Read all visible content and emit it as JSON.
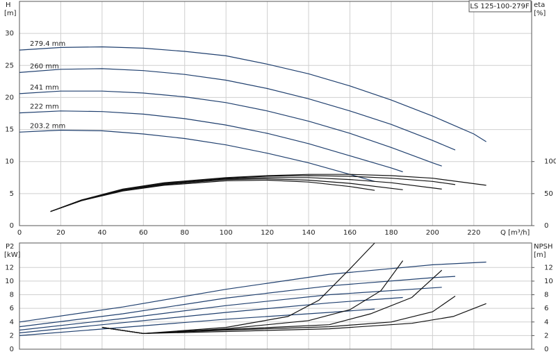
{
  "chart_data": [
    {
      "type": "line",
      "title": "LS 125-100-279F",
      "y_label": "H",
      "y_unit": "[m]",
      "y2_label": "eta",
      "y2_unit": "[%]",
      "x_label": "Q [m³/h]",
      "xlim": [
        0,
        248
      ],
      "xticks": [
        0,
        20,
        40,
        60,
        80,
        100,
        120,
        140,
        160,
        180,
        200,
        220
      ],
      "ylim": [
        0,
        35
      ],
      "yticks": [
        0,
        5,
        10,
        15,
        20,
        25,
        30
      ],
      "y2lim": [
        0,
        350
      ],
      "y2ticks": [
        0,
        50,
        100
      ],
      "grid": true,
      "series": [
        {
          "name": "279.4 mm",
          "color": "#1f3f6e",
          "x": [
            0,
            20,
            40,
            60,
            80,
            100,
            120,
            140,
            160,
            180,
            200,
            220,
            226
          ],
          "values": [
            27.4,
            27.8,
            27.9,
            27.7,
            27.2,
            26.5,
            25.2,
            23.7,
            21.8,
            19.6,
            17.1,
            14.3,
            13.1
          ]
        },
        {
          "name": "260 mm",
          "color": "#1f3f6e",
          "x": [
            0,
            20,
            40,
            60,
            80,
            100,
            120,
            140,
            160,
            180,
            200,
            211
          ],
          "values": [
            23.9,
            24.4,
            24.5,
            24.2,
            23.6,
            22.7,
            21.4,
            19.8,
            17.9,
            15.8,
            13.3,
            11.8
          ]
        },
        {
          "name": "241 mm",
          "color": "#1f3f6e",
          "x": [
            0,
            20,
            40,
            60,
            80,
            100,
            120,
            140,
            160,
            180,
            200,
            204.5
          ],
          "values": [
            20.6,
            21.0,
            21.0,
            20.7,
            20.1,
            19.2,
            17.9,
            16.3,
            14.4,
            12.2,
            9.8,
            9.3
          ]
        },
        {
          "name": "222 mm",
          "color": "#1f3f6e",
          "x": [
            0,
            20,
            40,
            60,
            80,
            100,
            120,
            140,
            160,
            180,
            185.6
          ],
          "values": [
            17.6,
            17.9,
            17.8,
            17.4,
            16.7,
            15.7,
            14.4,
            12.8,
            10.9,
            9.0,
            8.4
          ]
        },
        {
          "name": "203.2 mm",
          "color": "#1f3f6e",
          "x": [
            0,
            20,
            40,
            60,
            80,
            100,
            120,
            140,
            160,
            172
          ],
          "values": [
            14.6,
            14.9,
            14.8,
            14.3,
            13.6,
            12.6,
            11.3,
            9.8,
            8.0,
            6.9
          ]
        },
        {
          "axis": "y2",
          "color": "#111111",
          "x": [
            15,
            30,
            50,
            70,
            100,
            120,
            140,
            160,
            180,
            200,
            226
          ],
          "values": [
            22,
            40,
            57,
            67,
            75,
            78,
            80,
            80,
            78,
            74,
            63
          ]
        },
        {
          "axis": "y2",
          "color": "#111111",
          "x": [
            15,
            30,
            50,
            70,
            100,
            120,
            140,
            160,
            180,
            200,
            211
          ],
          "values": [
            22,
            40,
            56,
            66,
            74,
            77,
            78,
            77,
            74,
            69,
            64
          ]
        },
        {
          "axis": "y2",
          "color": "#111111",
          "x": [
            15,
            30,
            50,
            70,
            100,
            120,
            140,
            160,
            180,
            204.5
          ],
          "values": [
            22,
            39,
            55,
            65,
            73,
            75,
            75,
            72,
            67,
            57
          ]
        },
        {
          "axis": "y2",
          "color": "#111111",
          "x": [
            15,
            30,
            50,
            70,
            100,
            120,
            140,
            160,
            185.6
          ],
          "values": [
            22,
            39,
            55,
            64,
            72,
            73,
            71,
            66,
            56
          ]
        },
        {
          "axis": "y2",
          "color": "#111111",
          "x": [
            15,
            30,
            50,
            70,
            100,
            120,
            140,
            160,
            172
          ],
          "values": [
            22,
            39,
            54,
            63,
            70,
            71,
            68,
            61,
            55
          ]
        }
      ]
    },
    {
      "type": "line",
      "y_label": "P2",
      "y_unit": "[kW]",
      "y2_label": "NPSH",
      "y2_unit": "[m]",
      "xlim": [
        0,
        248
      ],
      "ylim": [
        0,
        15.6
      ],
      "yticks": [
        0,
        2,
        4,
        6,
        8,
        10,
        12
      ],
      "y2lim": [
        0,
        15.6
      ],
      "y2ticks": [
        0,
        2,
        4,
        6,
        8,
        10,
        12
      ],
      "grid": true,
      "series": [
        {
          "color": "#1f3f6e",
          "x": [
            0,
            50,
            100,
            150,
            200,
            226
          ],
          "values": [
            4.0,
            6.2,
            8.8,
            11.0,
            12.4,
            12.8
          ]
        },
        {
          "color": "#1f3f6e",
          "x": [
            0,
            50,
            100,
            150,
            200,
            211
          ],
          "values": [
            3.3,
            5.2,
            7.5,
            9.3,
            10.5,
            10.7
          ]
        },
        {
          "color": "#1f3f6e",
          "x": [
            0,
            50,
            100,
            150,
            200,
            204.5
          ],
          "values": [
            2.8,
            4.5,
            6.4,
            8.0,
            9.0,
            9.1
          ]
        },
        {
          "color": "#1f3f6e",
          "x": [
            0,
            50,
            100,
            150,
            185.6
          ],
          "values": [
            2.4,
            3.9,
            5.4,
            6.8,
            7.6
          ]
        },
        {
          "color": "#1f3f6e",
          "x": [
            0,
            50,
            100,
            150,
            172
          ],
          "values": [
            2.0,
            3.2,
            4.4,
            5.4,
            5.9
          ]
        },
        {
          "axis": "y2",
          "color": "#111111",
          "x": [
            40,
            60,
            100,
            150,
            190,
            210,
            226
          ],
          "values": [
            3.2,
            2.3,
            2.6,
            3.0,
            3.8,
            4.8,
            6.7
          ]
        },
        {
          "axis": "y2",
          "color": "#111111",
          "x": [
            40,
            60,
            100,
            150,
            180,
            200,
            211
          ],
          "values": [
            3.2,
            2.3,
            2.8,
            3.3,
            4.0,
            5.5,
            7.8
          ]
        },
        {
          "axis": "y2",
          "color": "#111111",
          "x": [
            40,
            60,
            100,
            150,
            170,
            190,
            204.5
          ],
          "values": [
            3.2,
            2.3,
            2.9,
            3.6,
            5.2,
            7.6,
            11.6
          ]
        },
        {
          "axis": "y2",
          "color": "#111111",
          "x": [
            40,
            60,
            100,
            140,
            160,
            175,
            185.6
          ],
          "values": [
            3.2,
            2.3,
            3.0,
            4.2,
            5.8,
            8.6,
            13.0
          ]
        },
        {
          "axis": "y2",
          "color": "#111111",
          "x": [
            40,
            60,
            100,
            130,
            145,
            160,
            172
          ],
          "values": [
            3.2,
            2.3,
            3.2,
            4.8,
            7.2,
            11.8,
            15.6
          ]
        }
      ]
    }
  ]
}
